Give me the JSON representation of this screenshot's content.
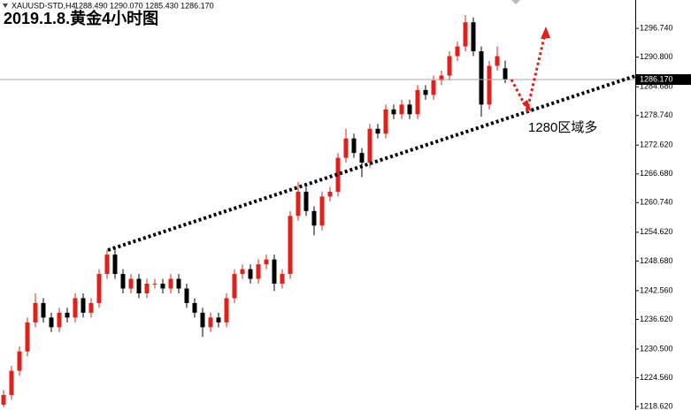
{
  "chart_data": {
    "type": "candlestick",
    "title": "2019.1.8.黄金4小时图",
    "symbol": "XAUUSD-STD,H4",
    "ohlc_label": "1288.490 1290.070 1285.430 1286.170",
    "annotation": "1280区域多",
    "up_color": "#e0201b",
    "down_color": "#000000",
    "open": [
      1219,
      1221,
      1226,
      1230,
      1236,
      1240,
      1237,
      1235,
      1238,
      1237,
      1241,
      1238,
      1240,
      1246,
      1250,
      1246,
      1243,
      1245,
      1242,
      1244,
      1244,
      1243,
      1245,
      1243,
      1240,
      1238,
      1235,
      1237,
      1236,
      1241,
      1246,
      1247,
      1245,
      1248,
      1249,
      1244,
      1246,
      1258,
      1263,
      1259,
      1256,
      1262,
      1263,
      1270,
      1274,
      1271,
      1269,
      1276,
      1275,
      1280,
      1279,
      1281,
      1279,
      1284,
      1283,
      1286,
      1287,
      1291,
      1293,
      1298,
      1292,
      1281,
      1289,
      1288.49
    ],
    "high": [
      1222,
      1227,
      1231,
      1237,
      1242,
      1241,
      1238,
      1239,
      1239,
      1242,
      1242,
      1241,
      1247,
      1251,
      1251,
      1247,
      1246,
      1246,
      1245,
      1245,
      1245,
      1246,
      1246,
      1244,
      1241,
      1239,
      1238,
      1238,
      1242,
      1247,
      1248,
      1248,
      1249,
      1250,
      1250,
      1247,
      1259,
      1265,
      1264,
      1260,
      1263,
      1264,
      1271,
      1276,
      1275,
      1272,
      1277,
      1277,
      1281,
      1281,
      1282,
      1282,
      1285,
      1285,
      1287,
      1288,
      1292,
      1294,
      1299.5,
      1299,
      1293,
      1290,
      1293,
      1290.07
    ],
    "low": [
      1218.5,
      1220,
      1225,
      1229,
      1235,
      1236,
      1234,
      1234,
      1236,
      1236,
      1237,
      1237,
      1239,
      1245,
      1245,
      1242,
      1242,
      1241,
      1241,
      1243,
      1242,
      1242,
      1242,
      1239,
      1237,
      1233,
      1234,
      1235,
      1235,
      1240,
      1245,
      1244,
      1244,
      1247,
      1242.5,
      1243,
      1245,
      1257,
      1258,
      1254,
      1255,
      1261,
      1262,
      1269,
      1270,
      1266,
      1268,
      1274,
      1274,
      1278,
      1278,
      1278,
      1278,
      1282,
      1282,
      1285,
      1286,
      1290,
      1292,
      1291,
      1278.5,
      1280,
      1288,
      1285.43
    ],
    "close": [
      1221,
      1226,
      1230,
      1236,
      1240,
      1237,
      1235,
      1238,
      1237,
      1241,
      1238,
      1240,
      1246,
      1250,
      1246,
      1243,
      1245,
      1242,
      1244,
      1244,
      1243,
      1245,
      1243,
      1240,
      1238,
      1235,
      1237,
      1236,
      1241,
      1246,
      1247,
      1245,
      1248,
      1249,
      1244,
      1246,
      1258,
      1263,
      1259,
      1256,
      1262,
      1263,
      1270,
      1274,
      1271,
      1269,
      1276,
      1275,
      1280,
      1279,
      1281,
      1279,
      1284,
      1283,
      1286,
      1287,
      1291,
      1293,
      1298,
      1292,
      1281,
      1289,
      1291,
      1286.17
    ],
    "last_price": {
      "value": 1286.17,
      "label": "1286.170"
    },
    "ylim": [
      1217.9,
      1302.6
    ],
    "yticks": [
      {
        "value": 1296.74,
        "label": "1296.740"
      },
      {
        "value": 1290.8,
        "label": "1290.800"
      },
      {
        "value": 1284.68,
        "label": "1284.680"
      },
      {
        "value": 1278.74,
        "label": "1278.740"
      },
      {
        "value": 1272.62,
        "label": "1272.620"
      },
      {
        "value": 1266.68,
        "label": "1266.680"
      },
      {
        "value": 1260.74,
        "label": "1260.740"
      },
      {
        "value": 1254.62,
        "label": "1254.620"
      },
      {
        "value": 1248.68,
        "label": "1248.680"
      },
      {
        "value": 1242.56,
        "label": "1242.560"
      },
      {
        "value": 1236.62,
        "label": "1236.620"
      },
      {
        "value": 1230.5,
        "label": "1230.500"
      },
      {
        "value": 1224.56,
        "label": "1224.560"
      },
      {
        "value": 1218.62,
        "label": "1218.620"
      }
    ]
  }
}
